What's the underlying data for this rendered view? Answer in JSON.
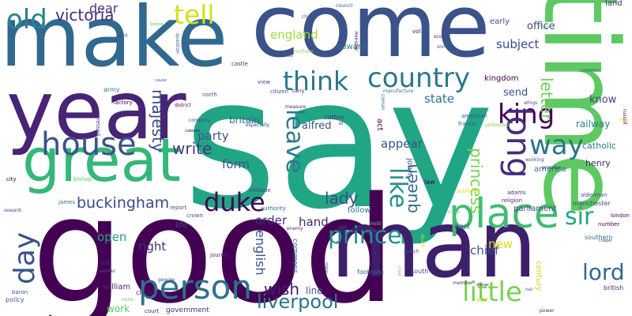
{
  "words": [
    {
      "text": "say",
      "color": "#21a685",
      "rotate": 0
    },
    {
      "text": "good",
      "color": "#440154",
      "rotate": 0
    },
    {
      "text": "come",
      "color": "#3b528b",
      "rotate": 0
    },
    {
      "text": "make",
      "color": "#31688e",
      "rotate": 0
    },
    {
      "text": "man",
      "color": "#3e1f6b",
      "rotate": 0
    },
    {
      "text": "time",
      "color": "#5ec962",
      "rotate": 90
    },
    {
      "text": "year",
      "color": "#482475",
      "rotate": 0
    },
    {
      "text": "great",
      "color": "#35b779",
      "rotate": 0
    },
    {
      "text": "place",
      "color": "#3fbc73",
      "rotate": 0
    },
    {
      "text": "house",
      "color": "#3b528b",
      "rotate": 0
    },
    {
      "text": "person",
      "color": "#2c728e",
      "rotate": 0
    },
    {
      "text": "country",
      "color": "#2a788e",
      "rotate": 0
    },
    {
      "text": "think",
      "color": "#2a788e",
      "rotate": 0
    },
    {
      "text": "prince",
      "color": "#21918c",
      "rotate": 0
    },
    {
      "text": "little",
      "color": "#7ad151",
      "rotate": 0
    },
    {
      "text": "duke",
      "color": "#440154",
      "rotate": 0
    },
    {
      "text": "day",
      "color": "#3b528b",
      "rotate": 270
    },
    {
      "text": "king",
      "color": "#440154",
      "rotate": 0
    },
    {
      "text": "way",
      "color": "#2c728e",
      "rotate": 0
    },
    {
      "text": "long",
      "color": "#472d7b",
      "rotate": 90
    },
    {
      "text": "lord",
      "color": "#31688e",
      "rotate": 0
    },
    {
      "text": "old",
      "color": "#26828e",
      "rotate": 0
    },
    {
      "text": "tell",
      "color": "#d2e21b",
      "rotate": 0
    },
    {
      "text": "leave",
      "color": "#2a788e",
      "rotate": 90
    },
    {
      "text": "like",
      "color": "#21918c",
      "rotate": 90
    },
    {
      "text": "sir",
      "color": "#21a685",
      "rotate": 0
    },
    {
      "text": "liverpool",
      "color": "#2c728e",
      "rotate": 0
    },
    {
      "text": "buckingham",
      "color": "#3e4989",
      "rotate": 0
    },
    {
      "text": "victoria",
      "color": "#472d7b",
      "rotate": 0
    },
    {
      "text": "write",
      "color": "#443983",
      "rotate": 0
    },
    {
      "text": "lady",
      "color": "#3e4989",
      "rotate": 0
    },
    {
      "text": "wish",
      "color": "#481a6c",
      "rotate": 0
    },
    {
      "text": "queen",
      "color": "#31688e",
      "rotate": 270
    },
    {
      "text": "majesty",
      "color": "#3e4989",
      "rotate": 90
    },
    {
      "text": "letter",
      "color": "#6ece58",
      "rotate": 90
    },
    {
      "text": "princess",
      "color": "#7ad151",
      "rotate": 90
    },
    {
      "text": "england",
      "color": "#9fda3a",
      "rotate": 0
    },
    {
      "text": "dear",
      "color": "#453781",
      "rotate": 0
    },
    {
      "text": "english",
      "color": "#3b528b",
      "rotate": 90
    },
    {
      "text": "hand",
      "color": "#482475",
      "rotate": 0
    },
    {
      "text": "order",
      "color": "#472d7b",
      "rotate": 0
    },
    {
      "text": "form",
      "color": "#3b528b",
      "rotate": 0
    },
    {
      "text": "state",
      "color": "#2c728e",
      "rotate": 0
    },
    {
      "text": "subject",
      "color": "#3e4989",
      "rotate": 0
    },
    {
      "text": "party",
      "color": "#3b528b",
      "rotate": 0
    },
    {
      "text": "appear",
      "color": "#3b528b",
      "rotate": 0
    },
    {
      "text": "chief",
      "color": "#3b528b",
      "rotate": 0
    },
    {
      "text": "open",
      "color": "#20a486",
      "rotate": 0
    },
    {
      "text": "right",
      "color": "#472d7b",
      "rotate": 0
    },
    {
      "text": "new",
      "color": "#d2e21b",
      "rotate": 0
    },
    {
      "text": "office",
      "color": "#414487",
      "rotate": 0
    },
    {
      "text": "send",
      "color": "#3b528b",
      "rotate": 0
    },
    {
      "text": "know",
      "color": "#414487",
      "rotate": 0
    },
    {
      "text": "john",
      "color": "#3e4989",
      "rotate": 90
    },
    {
      "text": "kingdom",
      "color": "#440154",
      "rotate": 0
    },
    {
      "text": "alfred",
      "color": "#3b528b",
      "rotate": 0
    },
    {
      "text": "britain",
      "color": "#31688e",
      "rotate": 0
    },
    {
      "text": "railway",
      "color": "#26828e",
      "rotate": 0
    },
    {
      "text": "catholic",
      "color": "#2a788e",
      "rotate": 0
    },
    {
      "text": "henry",
      "color": "#482475",
      "rotate": 0
    },
    {
      "text": "follow",
      "color": "#2c728e",
      "rotate": 0
    },
    {
      "text": "earl",
      "color": "#3b528b",
      "rotate": 0
    },
    {
      "text": "life",
      "color": "#3e4989",
      "rotate": 0
    },
    {
      "text": "work",
      "color": "#5ec962",
      "rotate": 0
    },
    {
      "text": "william",
      "color": "#482475",
      "rotate": 0
    },
    {
      "text": "early",
      "color": "#3b528b",
      "rotate": 0
    },
    {
      "text": "edward",
      "color": "#2c728e",
      "rotate": 0
    },
    {
      "text": "america",
      "color": "#2a788e",
      "rotate": 0
    },
    {
      "text": "parliament",
      "color": "#3e4989",
      "rotate": 0
    },
    {
      "text": "line",
      "color": "#3b528b",
      "rotate": 0
    },
    {
      "text": "act",
      "color": "#440154",
      "rotate": 90
    },
    {
      "text": "cotton",
      "color": "#472d7b",
      "rotate": 0
    },
    {
      "text": "land",
      "color": "#482878",
      "rotate": 0
    },
    {
      "text": "army",
      "color": "#2a788e",
      "rotate": 0
    },
    {
      "text": "city",
      "color": "#440154",
      "rotate": 0
    },
    {
      "text": "james",
      "color": "#2c728e",
      "rotate": 0
    },
    {
      "text": "century",
      "color": "#c8e020",
      "rotate": 90
    },
    {
      "text": "south",
      "color": "#3e4989",
      "rotate": 0
    },
    {
      "text": "law",
      "color": "#440154",
      "rotate": 0
    },
    {
      "text": "france",
      "color": "#3b528b",
      "rotate": 0
    },
    {
      "text": "american",
      "color": "#3b528b",
      "rotate": 0
    },
    {
      "text": "commons",
      "color": "#31688e",
      "rotate": 90
    },
    {
      "text": "southern",
      "color": "#2c728e",
      "rotate": 0
    },
    {
      "text": "british",
      "color": "#482878",
      "rotate": 0
    },
    {
      "text": "bill",
      "color": "#482475",
      "rotate": 0
    },
    {
      "text": "church",
      "color": "#482475",
      "rotate": 0
    },
    {
      "text": "government",
      "color": "#472d7b",
      "rotate": 0
    },
    {
      "text": "policy",
      "color": "#3b528b",
      "rotate": 0
    },
    {
      "text": "baron",
      "color": "#3b528b",
      "rotate": 0
    },
    {
      "text": "court",
      "color": "#472d7b",
      "rotate": 0
    },
    {
      "text": "war",
      "color": "#c8e020",
      "rotate": 0
    },
    {
      "text": "manchester",
      "color": "#3e4989",
      "rotate": 0
    },
    {
      "text": "alderman",
      "color": "#3e4989",
      "rotate": 0
    },
    {
      "text": "london",
      "color": "#440154",
      "rotate": 0
    },
    {
      "text": "number",
      "color": "#440154",
      "rotate": 0
    },
    {
      "text": "adams",
      "color": "#472d7b",
      "rotate": 0
    },
    {
      "text": "religion",
      "color": "#482878",
      "rotate": 0
    },
    {
      "text": "scotland",
      "color": "#d2e21b",
      "rotate": 0
    },
    {
      "text": "journal",
      "color": "#472d7b",
      "rotate": 0
    },
    {
      "text": "attitude",
      "color": "#414487",
      "rotate": 0
    },
    {
      "text": "authority",
      "color": "#2c728e",
      "rotate": 0
    },
    {
      "text": "crown",
      "color": "#3b528b",
      "rotate": 0
    },
    {
      "text": "report",
      "color": "#3b528b",
      "rotate": 0
    },
    {
      "text": "enemy",
      "color": "#482878",
      "rotate": 0
    },
    {
      "text": "footnote",
      "color": "#31688e",
      "rotate": 0
    },
    {
      "text": "worker",
      "color": "#3b528b",
      "rotate": 0
    },
    {
      "text": "company",
      "color": "#3e4989",
      "rotate": 0
    },
    {
      "text": "especially",
      "color": "#3e4989",
      "rotate": 0
    },
    {
      "text": "question",
      "color": "#3b528b",
      "rotate": 90
    },
    {
      "text": "castle",
      "color": "#472d7b",
      "rotate": 0
    },
    {
      "text": "view",
      "color": "#3e4989",
      "rotate": 0
    },
    {
      "text": "citizen",
      "color": "#3b528b",
      "rotate": 0
    },
    {
      "text": "carry",
      "color": "#440154",
      "rotate": 0
    },
    {
      "text": "north",
      "color": "#3b528b",
      "rotate": 0
    },
    {
      "text": "district",
      "color": "#440154",
      "rotate": 0
    },
    {
      "text": "factory",
      "color": "#440154",
      "rotate": 0
    },
    {
      "text": "ireland",
      "color": "#3e4989",
      "rotate": 90
    },
    {
      "text": "bishop",
      "color": "#5ec962",
      "rotate": 0
    },
    {
      "text": "seward",
      "color": "#3b528b",
      "rotate": 0
    },
    {
      "text": "measure",
      "color": "#482878",
      "rotate": 0
    },
    {
      "text": "manufacture",
      "color": "#2a788e",
      "rotate": 0
    },
    {
      "text": "coman",
      "color": "#31688e",
      "rotate": 90
    },
    {
      "text": "whigs",
      "color": "#3b528b",
      "rotate": 0
    },
    {
      "text": "protestant",
      "color": "#7ad151",
      "rotate": 0
    },
    {
      "text": "working",
      "color": "#3b528b",
      "rotate": 0
    },
    {
      "text": "propose",
      "color": "#482878",
      "rotate": 0
    },
    {
      "text": "russell",
      "color": "#440154",
      "rotate": 90
    },
    {
      "text": "class",
      "color": "#5ec962",
      "rotate": 0
    },
    {
      "text": "common",
      "color": "#3b528b",
      "rotate": 0
    },
    {
      "text": "town",
      "color": "#5ec962",
      "rotate": 0
    },
    {
      "text": "council",
      "color": "#3b528b",
      "rotate": 0
    },
    {
      "text": "child",
      "color": "#3b528b",
      "rotate": 0
    },
    {
      "text": "minister",
      "color": "#440154",
      "rotate": 90
    },
    {
      "text": "scot",
      "color": "#482475",
      "rotate": 0
    },
    {
      "text": "son",
      "color": "#3b528b",
      "rotate": 0
    },
    {
      "text": "vol",
      "color": "#440154",
      "rotate": 0
    },
    {
      "text": "northern",
      "color": "#8fd744",
      "rotate": 0
    },
    {
      "text": "charles",
      "color": "#3b528b",
      "rotate": 0
    },
    {
      "text": "saint",
      "color": "#3e4989",
      "rotate": 0
    },
    {
      "text": "bishop",
      "color": "#5ec962",
      "rotate": 0
    },
    {
      "text": "iii",
      "color": "#440154",
      "rotate": 0
    },
    {
      "text": "member",
      "color": "#472d7b",
      "rotate": 0
    },
    {
      "text": "coal",
      "color": "#5ec962",
      "rotate": 90
    },
    {
      "text": "sketch",
      "color": "#3b528b",
      "rotate": 0
    },
    {
      "text": "power",
      "color": "#482878",
      "rotate": 0
    },
    {
      "text": "george",
      "color": "#3e4989",
      "rotate": 0
    },
    {
      "text": "none",
      "color": "#5ec962",
      "rotate": 0
    },
    {
      "text": "death",
      "color": "#c8e020",
      "rotate": 90
    },
    {
      "text": "return",
      "color": "#3b528b",
      "rotate": 0
    },
    {
      "text": "hold",
      "color": "#5ec962",
      "rotate": 0
    },
    {
      "text": "chapel",
      "color": "#3b528b",
      "rotate": 0
    },
    {
      "text": "cause",
      "color": "#3b528b",
      "rotate": 0
    },
    {
      "text": "exist",
      "color": "#d2e21b",
      "rotate": 0
    },
    {
      "text": "cabinet",
      "color": "#440154",
      "rotate": 0
    },
    {
      "text": "major",
      "color": "#3e4989",
      "rotate": 90
    },
    {
      "text": "hall",
      "color": "#3b528b",
      "rotate": 0
    },
    {
      "text": "dinner",
      "color": "#440154",
      "rotate": 0
    }
  ]
}
